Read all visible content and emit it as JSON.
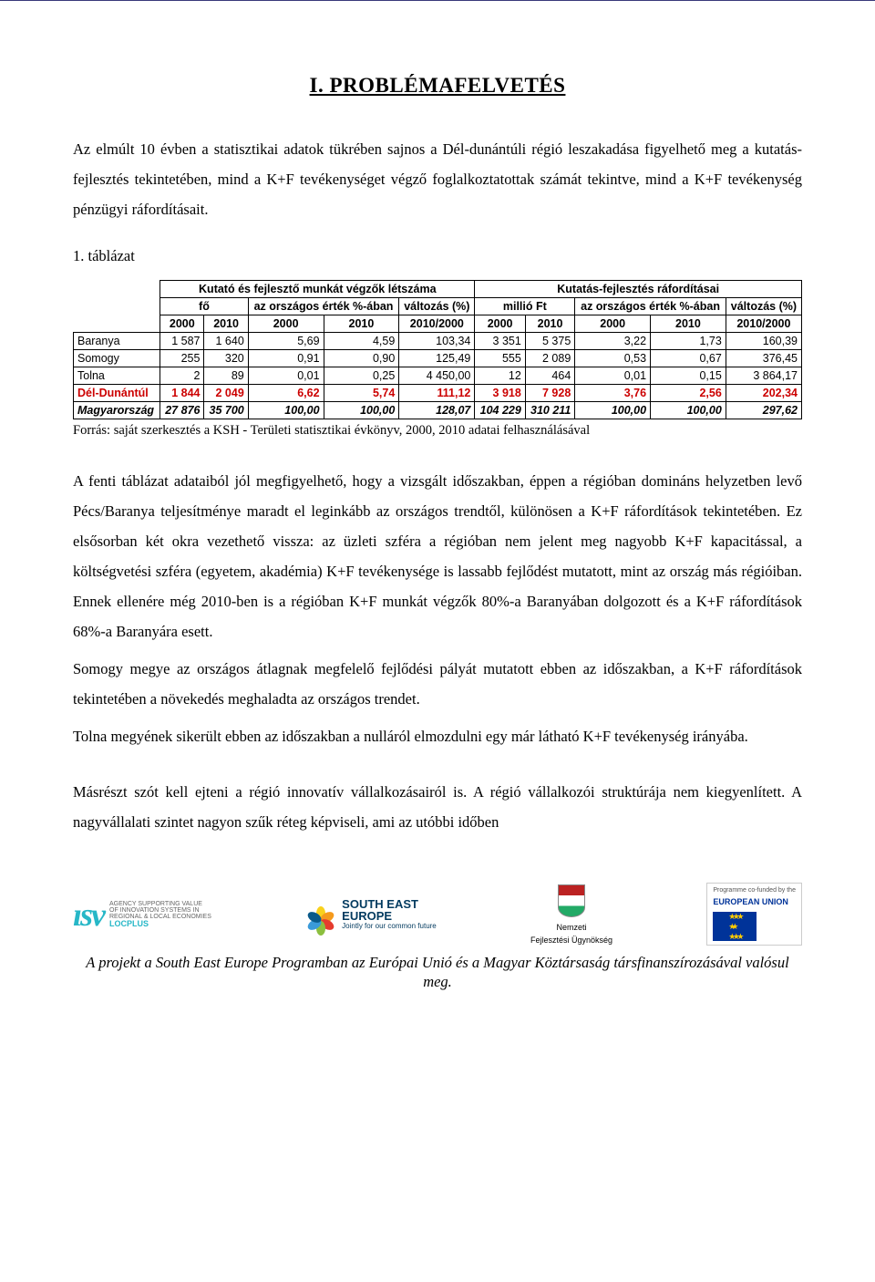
{
  "title": "I. PROBLÉMAFELVETÉS",
  "para1": "Az elmúlt 10 évben a statisztikai adatok tükrében sajnos a Dél-dunántúli régió leszakadása figyelhető meg a kutatás-fejlesztés tekintetében, mind a K+F tevékenységet végző foglalkoztatottak számát tekintve, mind a K+F tevékenység pénzügyi ráfordításait.",
  "table_caption": "1. táblázat",
  "table": {
    "group1": "Kutató és fejlesztő munkát végzők létszáma",
    "group2": "Kutatás-fejlesztés ráfordításai",
    "sub_fo": "fő",
    "sub_orsz": "az országos érték %-ában",
    "sub_valt": "változás (%)",
    "sub_millio": "millió Ft",
    "y2000": "2000",
    "y2010": "2010",
    "y20102000": "2010/2000",
    "rows": [
      {
        "name": "Baranya",
        "c": [
          "1 587",
          "1 640",
          "5,69",
          "4,59",
          "103,34",
          "3 351",
          "5 375",
          "3,22",
          "1,73",
          "160,39"
        ],
        "color": "#000000",
        "italic": false
      },
      {
        "name": "Somogy",
        "c": [
          "255",
          "320",
          "0,91",
          "0,90",
          "125,49",
          "555",
          "2 089",
          "0,53",
          "0,67",
          "376,45"
        ],
        "color": "#000000",
        "italic": false
      },
      {
        "name": "Tolna",
        "c": [
          "2",
          "89",
          "0,01",
          "0,25",
          "4 450,00",
          "12",
          "464",
          "0,01",
          "0,15",
          "3 864,17"
        ],
        "color": "#000000",
        "italic": false
      },
      {
        "name": "Dél-Dunántúl",
        "c": [
          "1 844",
          "2 049",
          "6,62",
          "5,74",
          "111,12",
          "3 918",
          "7 928",
          "3,76",
          "2,56",
          "202,34"
        ],
        "color": "#cc0000",
        "italic": false,
        "bold": true
      },
      {
        "name": "Magyarország",
        "c": [
          "27 876",
          "35 700",
          "100,00",
          "100,00",
          "128,07",
          "104 229",
          "310 211",
          "100,00",
          "100,00",
          "297,62"
        ],
        "color": "#000000",
        "italic": true,
        "bold": true
      }
    ]
  },
  "source_label": "Forrás: saját szerkesztés a KSH - Területi statisztikai évkönyv, 2000, 2010 adatai felhasználásával",
  "para2": "A fenti táblázat adataiból jól megfigyelhető, hogy a vizsgált időszakban, éppen a régióban domináns helyzetben levő Pécs/Baranya teljesítménye maradt el leginkább az országos trendtől, különösen a K+F ráfordítások tekintetében. Ez elsősorban két okra vezethető vissza: az üzleti szféra a régióban nem jelent meg nagyobb K+F kapacitással, a költségvetési szféra (egyetem, akadémia) K+F tevékenysége is lassabb fejlődést mutatott, mint az ország más régióiban. Ennek ellenére még 2010-ben is a régióban K+F munkát végzők 80%-a Baranyában dolgozott és a K+F ráfordítások 68%-a Baranyára esett.",
  "para3": "Somogy megye az országos átlagnak megfelelő fejlődési pályát mutatott ebben az időszakban, a K+F ráfordítások tekintetében a növekedés meghaladta az országos trendet.",
  "para4": "Tolna megyének sikerült ebben az időszakban a nulláról elmozdulni egy már látható K+F tevékenység irányába.",
  "para5": "Másrészt szót kell ejteni a régió innovatív vállalkozásairól is. A régió vállalkozói struktúrája nem kiegyenlített. A nagyvállalati szintet nagyon szűk réteg képviseli, ami az utóbbi időben",
  "logos": {
    "isv_mark": "ısv",
    "isv_line1": "AGENCY SUPPORTING VALUE",
    "isv_line2": "OF INNOVATION SYSTEMS IN",
    "isv_line3": "REGIONAL & LOCAL ECONOMIES",
    "isv_line4": "LOCPLUS",
    "se_title1": "SOUTH EAST",
    "se_title2": "EUROPE",
    "se_sub": "Jointly for our common future",
    "nfu_line1": "Nemzeti",
    "nfu_line2": "Fejlesztési Ügynökség",
    "eu_line1": "Programme co-funded by the",
    "eu_line2": "EUROPEAN UNION",
    "eu_stars": "★"
  },
  "footer": "A projekt a South East Europe Programban az Európai Unió és a Magyar Köztársaság társfinanszírozásával valósul meg.",
  "colors": {
    "highlight_row": "#cc0000",
    "isv": "#27b7c7",
    "se_text": "#023a5f",
    "eu_blue": "#003399",
    "eu_gold": "#ffcc00"
  },
  "petal_colors": [
    "#f9d11c",
    "#f59a1c",
    "#e53c2e",
    "#8cbf3f",
    "#3a9ad9",
    "#0a5a8a"
  ]
}
